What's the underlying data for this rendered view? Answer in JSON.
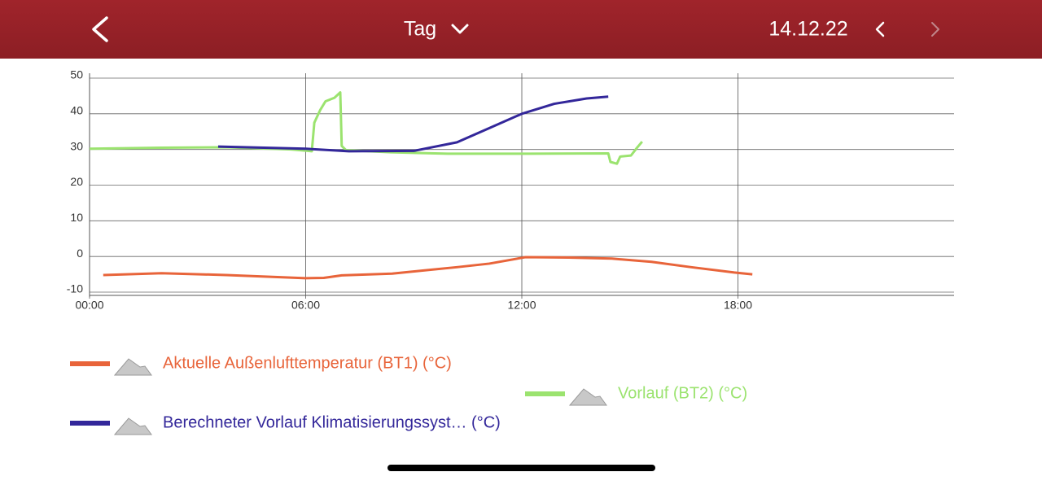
{
  "header": {
    "title": "Tag",
    "date": "14.12.22"
  },
  "chart_data": {
    "type": "line",
    "xlim": [
      0,
      24
    ],
    "xticks": [
      {
        "value": 0,
        "label": "00:00"
      },
      {
        "value": 6,
        "label": "06:00"
      },
      {
        "value": 12,
        "label": "12:00"
      },
      {
        "value": 18,
        "label": "18:00"
      }
    ],
    "ylim": [
      -10,
      50
    ],
    "yticks": [
      -10,
      0,
      10,
      20,
      30,
      40,
      50
    ],
    "grid": true,
    "series": [
      {
        "name": "Aktuelle Außenlufttemperatur (BT1) (°C)",
        "color": "#e8643a",
        "x": [
          0.38,
          2.0,
          3.8,
          6.0,
          6.5,
          7.0,
          8.4,
          9.3,
          10.2,
          11.1,
          12.1,
          13.3,
          14.5,
          15.6,
          16.7,
          17.9,
          18.4
        ],
        "values": [
          -5.2,
          -4.7,
          -5.2,
          -6.1,
          -6.0,
          -5.3,
          -4.8,
          -3.9,
          -3.0,
          -2.0,
          -0.2,
          -0.3,
          -0.6,
          -1.5,
          -3.0,
          -4.5,
          -5.0
        ]
      },
      {
        "name": "Vorlauf (BT2) (°C)",
        "color": "#9be36f",
        "x": [
          0,
          2.0,
          3.8,
          5.6,
          6.17,
          6.24,
          6.4,
          6.55,
          6.8,
          6.96,
          7.0,
          7.12,
          8.36,
          9.94,
          12.2,
          14.4,
          14.46,
          14.64,
          14.73,
          15.03,
          15.2,
          15.34
        ],
        "values": [
          30.2,
          30.5,
          30.6,
          30.0,
          29.5,
          37.5,
          41,
          43.5,
          44.5,
          46,
          31,
          29.8,
          29.2,
          28.8,
          28.8,
          28.9,
          26.5,
          26,
          28,
          28.3,
          30.5,
          32.2
        ]
      },
      {
        "name": "Berechneter Vorlauf Klimatisierungssyst…  (°C)",
        "color": "#33279a",
        "x": [
          3.57,
          6.0,
          7.2,
          9.0,
          10.2,
          11.1,
          12.0,
          12.9,
          13.8,
          14.4
        ],
        "values": [
          30.8,
          30.2,
          29.5,
          29.6,
          32,
          36,
          40,
          42.8,
          44.3,
          44.8
        ]
      }
    ]
  }
}
